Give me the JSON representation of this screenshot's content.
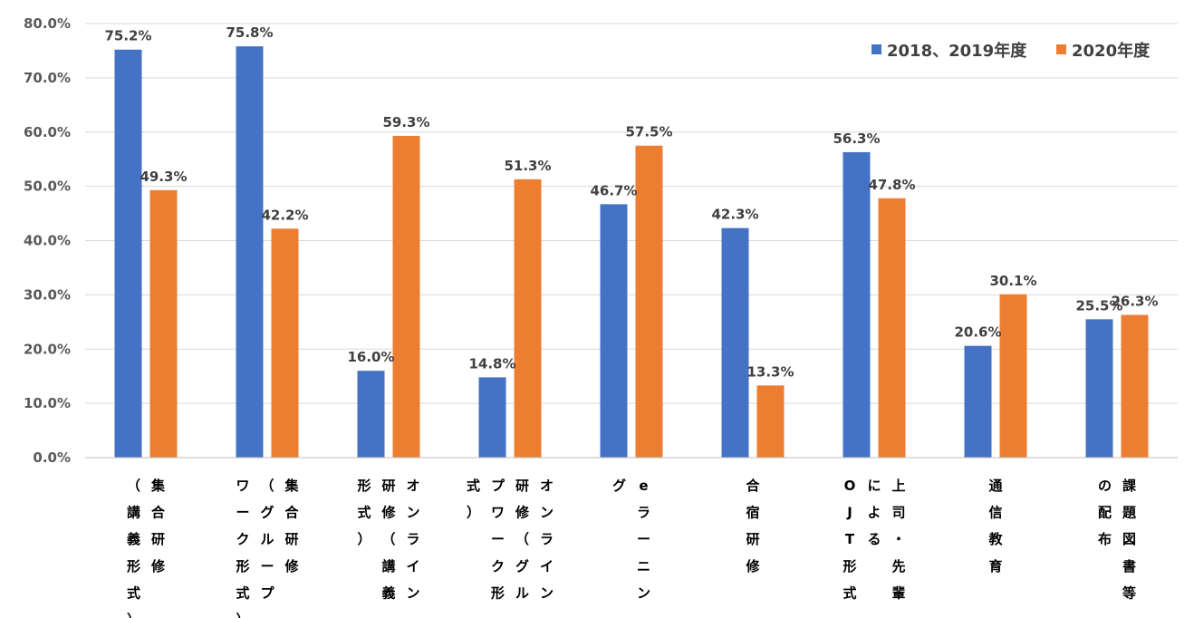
{
  "chart_data": {
    "type": "bar",
    "title": "",
    "xlabel": "",
    "ylabel": "",
    "ylim": [
      0,
      80
    ],
    "yticks": [
      "0.0%",
      "10.0%",
      "20.0%",
      "30.0%",
      "40.0%",
      "50.0%",
      "60.0%",
      "70.0%",
      "80.0%"
    ],
    "grid": true,
    "legend_position": "top-right",
    "categories": [
      [
        "集合研修",
        "（講義形式）"
      ],
      [
        "集合研修",
        "（グループ",
        "ワーク形式）"
      ],
      [
        "オンライン",
        "研修（講義",
        "形式）"
      ],
      [
        "オンライン",
        "研修（グルー",
        "プワーク形",
        "式）"
      ],
      [
        "eラーニン",
        "グ"
      ],
      [
        "合宿研修"
      ],
      [
        "上司・先輩",
        "による",
        "OJT形式"
      ],
      [
        "通信教育"
      ],
      [
        "課題図書等",
        "の配布"
      ]
    ],
    "series": [
      {
        "name": "2018、2019年度",
        "color": "#4472C4",
        "values": [
          75.2,
          75.8,
          16.0,
          14.8,
          46.7,
          42.3,
          56.3,
          20.6,
          25.5
        ],
        "labels": [
          "75.2%",
          "75.8%",
          "16.0%",
          "14.8%",
          "46.7%",
          "42.3%",
          "56.3%",
          "20.6%",
          "25.5%"
        ]
      },
      {
        "name": "2020年度",
        "color": "#ED7D31",
        "values": [
          49.3,
          42.2,
          59.3,
          51.3,
          57.5,
          13.3,
          47.8,
          30.1,
          26.3
        ],
        "labels": [
          "49.3%",
          "42.2%",
          "59.3%",
          "51.3%",
          "57.5%",
          "13.3%",
          "47.8%",
          "30.1%",
          "26.3%"
        ]
      }
    ]
  }
}
